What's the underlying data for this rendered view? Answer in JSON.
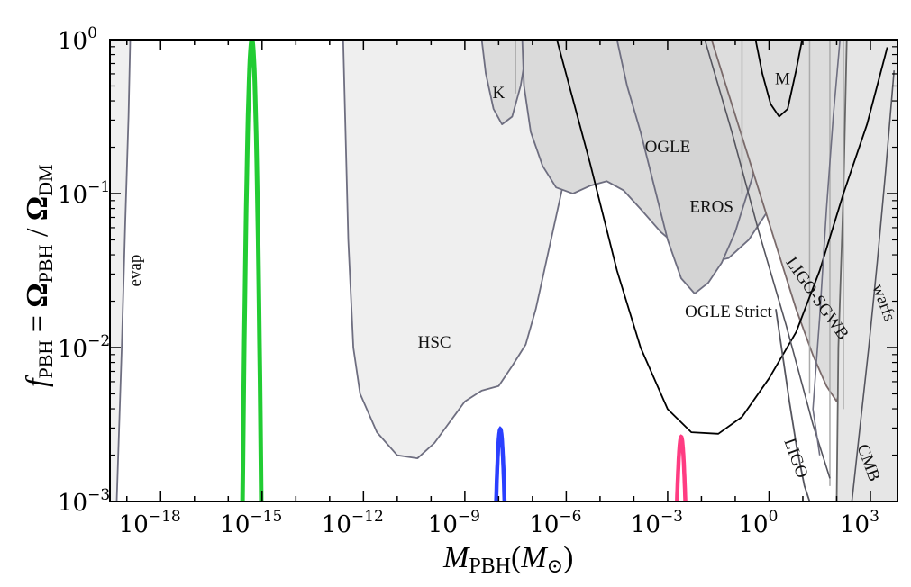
{
  "chart_data": {
    "type": "line",
    "title": "",
    "xlabel": {
      "base": "M",
      "sub": "PBH",
      "paren_open": "(",
      "unit": "M",
      "unit_sub": "⊙",
      "paren_close": ")"
    },
    "ylabel": {
      "f": "f",
      "f_sub": "PBH",
      "eq": " = ",
      "num": "Ω",
      "num_sub": "PBH",
      "slash": " / ",
      "den": "Ω",
      "den_sub": "DM"
    },
    "x_scale": "log10",
    "y_scale": "log10",
    "xlim_log10": [
      -19.5,
      3.8
    ],
    "ylim_log10": [
      -3,
      0
    ],
    "x_ticks": [
      {
        "value": -18,
        "base": "10",
        "exp": "−18"
      },
      {
        "value": -15,
        "base": "10",
        "exp": "−15"
      },
      {
        "value": -12,
        "base": "10",
        "exp": "−12"
      },
      {
        "value": -9,
        "base": "10",
        "exp": "−9"
      },
      {
        "value": -6,
        "base": "10",
        "exp": "−6"
      },
      {
        "value": -3,
        "base": "10",
        "exp": "−3"
      },
      {
        "value": 0,
        "base": "10",
        "exp": "0"
      },
      {
        "value": 3,
        "base": "10",
        "exp": "3"
      }
    ],
    "y_ticks": [
      {
        "value": -3,
        "base": "10",
        "exp": "−3"
      },
      {
        "value": -2,
        "base": "10",
        "exp": "−2"
      },
      {
        "value": -1,
        "base": "10",
        "exp": "−1"
      },
      {
        "value": 0,
        "base": "10",
        "exp": "0"
      }
    ],
    "constraints": [
      {
        "name": "evap",
        "fill": "#f0f0f0",
        "stroke": "#6e6e80",
        "fill_to": "left",
        "points": [
          [
            -19.5,
            0
          ],
          [
            -18.9,
            0
          ],
          [
            -18.95,
            -0.5
          ],
          [
            -19.05,
            -1.2
          ],
          [
            -19.15,
            -2
          ],
          [
            -19.3,
            -3
          ],
          [
            -19.5,
            -3
          ]
        ]
      },
      {
        "name": "HSC",
        "fill": "#efefef",
        "stroke": "#6e6e80",
        "closed": true,
        "points": [
          [
            -12.6,
            0
          ],
          [
            -12.45,
            -1.3
          ],
          [
            -12.3,
            -2
          ],
          [
            -12.1,
            -2.3
          ],
          [
            -11.6,
            -2.55
          ],
          [
            -11.0,
            -2.7
          ],
          [
            -10.4,
            -2.72
          ],
          [
            -9.9,
            -2.62
          ],
          [
            -9.5,
            -2.5
          ],
          [
            -9.0,
            -2.35
          ],
          [
            -8.5,
            -2.28
          ],
          [
            -8.0,
            -2.25
          ],
          [
            -7.6,
            -2.12
          ],
          [
            -7.2,
            -1.98
          ],
          [
            -6.9,
            -1.75
          ],
          [
            -6.5,
            -1.35
          ],
          [
            -6.1,
            -0.95
          ],
          [
            -5.7,
            -0.55
          ],
          [
            -5.3,
            -0.2
          ],
          [
            -5.0,
            0
          ]
        ]
      },
      {
        "name": "K",
        "fill": "#dcdcdc",
        "stroke": "#6e6e80",
        "closed": true,
        "points": [
          [
            -8.5,
            0
          ],
          [
            -8.38,
            -0.22
          ],
          [
            -8.15,
            -0.45
          ],
          [
            -7.9,
            -0.55
          ],
          [
            -7.6,
            -0.5
          ],
          [
            -7.35,
            -0.3
          ],
          [
            -7.2,
            -0.1
          ],
          [
            -7.1,
            0
          ]
        ]
      },
      {
        "name": "OGLE",
        "fill": "#dadada",
        "stroke": "#6e6e80",
        "closed": true,
        "points": [
          [
            -7.3,
            0
          ],
          [
            -7.25,
            -0.3
          ],
          [
            -7.05,
            -0.6
          ],
          [
            -6.7,
            -0.82
          ],
          [
            -6.3,
            -0.96
          ],
          [
            -5.8,
            -1.0
          ],
          [
            -5.3,
            -0.95
          ],
          [
            -4.8,
            -0.92
          ],
          [
            -4.3,
            -0.98
          ],
          [
            -3.8,
            -1.1
          ],
          [
            -3.2,
            -1.25
          ],
          [
            -2.5,
            -1.38
          ],
          [
            -1.8,
            -1.45
          ],
          [
            -1.2,
            -1.42
          ],
          [
            -0.6,
            -1.3
          ],
          [
            0.0,
            -1.1
          ],
          [
            0.7,
            -0.75
          ],
          [
            1.3,
            -0.3
          ],
          [
            1.6,
            0
          ]
        ]
      },
      {
        "name": "EROS",
        "fill": "#d4d4d4",
        "stroke": "#6e6e80",
        "closed": true,
        "points": [
          [
            -4.5,
            0
          ],
          [
            -4.2,
            -0.3
          ],
          [
            -3.8,
            -0.6
          ],
          [
            -3.4,
            -0.95
          ],
          [
            -3.0,
            -1.3
          ],
          [
            -2.6,
            -1.55
          ],
          [
            -2.2,
            -1.65
          ],
          [
            -1.8,
            -1.58
          ],
          [
            -1.4,
            -1.45
          ],
          [
            -1.0,
            -1.25
          ],
          [
            -0.5,
            -0.9
          ],
          [
            0.0,
            -0.5
          ],
          [
            0.4,
            0
          ]
        ]
      },
      {
        "name": "LIGO-SGWB",
        "fill": "#dddddd",
        "stroke": "#7a6a6a",
        "closed": true,
        "points": [
          [
            -1.7,
            0
          ],
          [
            -1.2,
            -0.35
          ],
          [
            -0.7,
            -0.7
          ],
          [
            -0.2,
            -1.05
          ],
          [
            0.3,
            -1.4
          ],
          [
            0.8,
            -1.75
          ],
          [
            1.3,
            -2.05
          ],
          [
            1.7,
            -2.25
          ],
          [
            2.0,
            -2.35
          ],
          [
            2.2,
            -2.2
          ],
          [
            2.5,
            -1.95
          ],
          [
            2.75,
            -1.5
          ],
          [
            2.95,
            -1.0
          ],
          [
            3.15,
            -0.6
          ],
          [
            3.4,
            -0.3
          ],
          [
            3.7,
            -0.15
          ],
          [
            3.8,
            -0.1
          ],
          [
            3.8,
            0
          ]
        ]
      },
      {
        "name": "CMB",
        "fill": "#e6e6e6",
        "stroke": "#666666",
        "fill_to": "right",
        "points": [
          [
            2.3,
            0
          ],
          [
            2.2,
            -1.0
          ],
          [
            2.05,
            -2.0
          ],
          [
            2.0,
            -3
          ],
          [
            3.8,
            -3
          ],
          [
            3.8,
            0
          ]
        ]
      }
    ],
    "lines": [
      {
        "name": "OGLE Strict",
        "stroke": "#000000",
        "width": 1.8,
        "points": [
          [
            -6.3,
            0.02
          ],
          [
            -5.3,
            -0.8
          ],
          [
            -4.5,
            -1.5
          ],
          [
            -3.8,
            -2.0
          ],
          [
            -3.0,
            -2.4
          ],
          [
            -2.3,
            -2.55
          ],
          [
            -1.5,
            -2.56
          ],
          [
            -0.8,
            -2.45
          ],
          [
            0.0,
            -2.2
          ],
          [
            0.8,
            -1.9
          ],
          [
            1.5,
            -1.5
          ],
          [
            2.2,
            -1.0
          ],
          [
            2.9,
            -0.55
          ],
          [
            3.5,
            -0.05
          ]
        ]
      },
      {
        "name": "M",
        "stroke": "#000000",
        "width": 1.8,
        "points": [
          [
            -0.4,
            0
          ],
          [
            -0.2,
            -0.22
          ],
          [
            0.05,
            -0.42
          ],
          [
            0.3,
            -0.5
          ],
          [
            0.55,
            -0.45
          ],
          [
            0.8,
            -0.2
          ],
          [
            0.98,
            0
          ]
        ]
      },
      {
        "name": "LIGO",
        "stroke": "#55555e",
        "width": 1.8,
        "points": [
          [
            0.2,
            -1.75
          ],
          [
            0.4,
            -2.05
          ],
          [
            0.6,
            -2.35
          ],
          [
            0.82,
            -2.65
          ],
          [
            1.05,
            -2.9
          ],
          [
            1.2,
            -3.0
          ]
        ]
      },
      {
        "name": "warfs",
        "stroke": "#55555e",
        "width": 1.6,
        "points": [
          [
            3.7,
            -0.2
          ],
          [
            3.45,
            -0.85
          ],
          [
            3.2,
            -1.45
          ],
          [
            2.95,
            -2.0
          ],
          [
            2.7,
            -2.5
          ],
          [
            2.45,
            -3.0
          ]
        ]
      },
      {
        "name": "LIGO-edge",
        "stroke": "#55555e",
        "width": 1.6,
        "points": [
          [
            -1.9,
            0
          ],
          [
            -1.1,
            -0.6
          ],
          [
            -0.3,
            -1.25
          ],
          [
            0.5,
            -1.85
          ],
          [
            1.3,
            -2.5
          ],
          [
            1.8,
            -2.85
          ]
        ]
      },
      {
        "name": "EROS-edge",
        "stroke": "#6e6e80",
        "width": 1.6,
        "points": [
          [
            2.1,
            0
          ],
          [
            1.9,
            -0.5
          ],
          [
            1.7,
            -1.1
          ],
          [
            1.5,
            -1.8
          ],
          [
            1.3,
            -2.4
          ],
          [
            1.5,
            -2.7
          ]
        ]
      }
    ],
    "vertical_lines": [
      {
        "x": -7.5,
        "y_from": -0.35,
        "y_to": 0,
        "stroke": "#aaaaaa"
      },
      {
        "x": -0.8,
        "y_from": -1.0,
        "y_to": 0,
        "stroke": "#aaaaaa"
      },
      {
        "x": 1.2,
        "y_from": -2.3,
        "y_to": 0,
        "stroke": "#aaaaaa"
      },
      {
        "x": 1.8,
        "y_from": -2.9,
        "y_to": 0,
        "stroke": "#aaaaaa"
      },
      {
        "x": 2.2,
        "y_from": -2.4,
        "y_to": 0,
        "stroke": "#aaaaaa"
      }
    ],
    "peaks": [
      {
        "name": "green",
        "color": "#22cc33",
        "center": -15.3,
        "half_width": 0.28,
        "peak": 0,
        "width": 5
      },
      {
        "name": "blue",
        "color": "#2a3fff",
        "center": -7.95,
        "half_width": 0.13,
        "peak": -2.53,
        "width": 4.5
      },
      {
        "name": "pink",
        "color": "#ff3c82",
        "center": -2.6,
        "half_width": 0.13,
        "peak": -2.58,
        "width": 4.5
      }
    ],
    "region_labels": [
      {
        "id": "evap",
        "text": "evap",
        "x": -18.6,
        "y": -1.5,
        "rotate": -90
      },
      {
        "id": "k",
        "text": "K",
        "x": -8.0,
        "y": -0.38,
        "rotate": 0
      },
      {
        "id": "m",
        "text": "M",
        "x": 0.4,
        "y": -0.29,
        "rotate": 0
      },
      {
        "id": "ogle",
        "text": "OGLE",
        "x": -3.0,
        "y": -0.73,
        "rotate": 0
      },
      {
        "id": "eros",
        "text": "EROS",
        "x": -1.7,
        "y": -1.12,
        "rotate": 0
      },
      {
        "id": "hsc",
        "text": "HSC",
        "x": -9.9,
        "y": -2.0,
        "rotate": 0
      },
      {
        "id": "ogle-strict",
        "text": "OGLE Strict",
        "x": -1.2,
        "y": -1.8,
        "rotate": 0
      },
      {
        "id": "ligo-sgwb",
        "text": "LIGO-SGWB",
        "x": 1.3,
        "y": -1.7,
        "rotate": 55
      },
      {
        "id": "warfs",
        "text": "warfs",
        "x": 3.25,
        "y": -1.72,
        "rotate": 70
      },
      {
        "id": "ligo",
        "text": "LIGO",
        "x": 0.65,
        "y": -2.73,
        "rotate": 70
      },
      {
        "id": "cmb",
        "text": "CMB",
        "x": 2.8,
        "y": -2.76,
        "rotate": 70
      }
    ]
  }
}
